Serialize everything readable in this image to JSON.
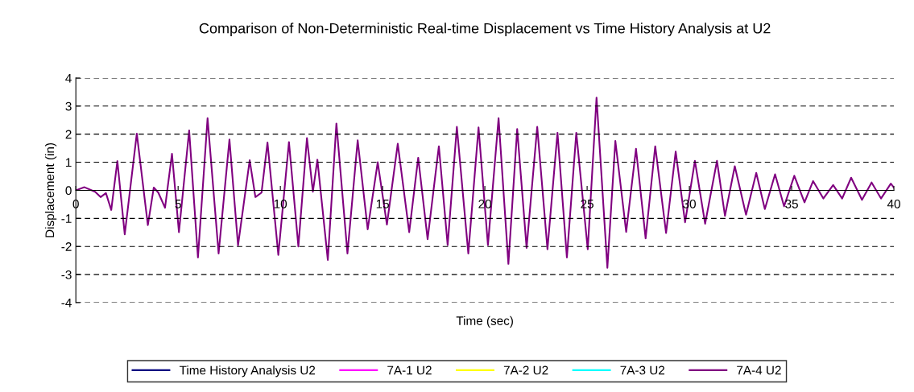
{
  "chart_data": {
    "type": "line",
    "title": "Comparison of Non-Deterministic Real-time Displacement vs Time History Analysis at U2",
    "xlabel": "Time (sec)",
    "ylabel": "Displacement (in)",
    "x": [
      0,
      0.42,
      0.94,
      1.21,
      1.47,
      1.73,
      2.03,
      2.39,
      2.98,
      3.52,
      3.81,
      4.03,
      4.36,
      4.7,
      5.04,
      5.54,
      5.97,
      6.44,
      6.98,
      7.51,
      7.93,
      8.5,
      8.78,
      9.08,
      9.37,
      9.9,
      10.42,
      10.88,
      11.3,
      11.59,
      11.81,
      12.32,
      12.74,
      13.28,
      13.78,
      14.27,
      14.76,
      15.21,
      15.74,
      16.3,
      16.74,
      17.2,
      17.75,
      18.18,
      18.63,
      19.19,
      19.69,
      20.15,
      20.67,
      21.15,
      21.58,
      22.04,
      22.56,
      23.06,
      23.55,
      24.01,
      24.47,
      25.03,
      25.46,
      25.99,
      26.38,
      26.91,
      27.39,
      27.86,
      28.33,
      28.86,
      29.33,
      29.79,
      30.27,
      30.77,
      31.35,
      31.74,
      32.22,
      32.77,
      33.27,
      33.69,
      34.19,
      34.63,
      35.13,
      35.63,
      36.05,
      36.55,
      37.03,
      37.47,
      37.91,
      38.44,
      38.91,
      39.37,
      39.85,
      40
    ],
    "series": [
      {
        "name": "Time History Analysis U2",
        "color": "#000080",
        "values": [
          null,
          null,
          null,
          null,
          null,
          null,
          null,
          null,
          null,
          null,
          null,
          null,
          null,
          null,
          null,
          null,
          null,
          null,
          null,
          null,
          null,
          null,
          null,
          null,
          null,
          null,
          null,
          null,
          null,
          null,
          null,
          null,
          null,
          null,
          null,
          null,
          null,
          null,
          null,
          null,
          null,
          null,
          null,
          null,
          null,
          null,
          null,
          null,
          null,
          null,
          null,
          null,
          null,
          null,
          null,
          null,
          null,
          null,
          null,
          null,
          null,
          null,
          null,
          null,
          null,
          null,
          null,
          null,
          null,
          null,
          null,
          null,
          null,
          null,
          null,
          null,
          null,
          null,
          null,
          null,
          null,
          null,
          null,
          null,
          null,
          null,
          null,
          null,
          null,
          null
        ]
      },
      {
        "name": "7A-1 U2",
        "color": "#ff00ff",
        "values": [
          null,
          null,
          null,
          null,
          null,
          null,
          null,
          null,
          null,
          null,
          null,
          null,
          null,
          null,
          null,
          null,
          null,
          null,
          null,
          null,
          null,
          null,
          null,
          null,
          null,
          null,
          null,
          null,
          null,
          null,
          null,
          null,
          null,
          null,
          null,
          null,
          null,
          null,
          null,
          null,
          null,
          null,
          null,
          null,
          null,
          null,
          null,
          null,
          null,
          null,
          null,
          null,
          null,
          null,
          null,
          null,
          null,
          null,
          null,
          null,
          null,
          null,
          null,
          null,
          null,
          null,
          null,
          null,
          null,
          null,
          null,
          null,
          null,
          null,
          null,
          null,
          null,
          null,
          null,
          null,
          null,
          null,
          null,
          null,
          null,
          null,
          null,
          null,
          null,
          null
        ]
      },
      {
        "name": "7A-2 U2",
        "color": "#ffff00",
        "values": [
          null,
          null,
          null,
          null,
          null,
          null,
          null,
          null,
          null,
          null,
          null,
          null,
          null,
          null,
          null,
          null,
          null,
          null,
          null,
          null,
          null,
          null,
          null,
          null,
          null,
          null,
          null,
          null,
          null,
          null,
          null,
          null,
          null,
          null,
          null,
          null,
          null,
          null,
          null,
          null,
          null,
          null,
          null,
          null,
          null,
          null,
          null,
          null,
          null,
          null,
          null,
          null,
          null,
          null,
          null,
          null,
          null,
          null,
          null,
          null,
          null,
          null,
          null,
          null,
          null,
          null,
          null,
          null,
          null,
          null,
          null,
          null,
          null,
          null,
          null,
          null,
          null,
          null,
          null,
          null,
          null,
          null,
          null,
          null,
          null,
          null,
          null,
          null,
          null,
          null
        ]
      },
      {
        "name": "7A-3 U2",
        "color": "#00ffff",
        "values": [
          null,
          null,
          null,
          null,
          null,
          null,
          null,
          null,
          null,
          null,
          null,
          null,
          null,
          null,
          null,
          null,
          null,
          null,
          null,
          null,
          null,
          null,
          null,
          null,
          null,
          null,
          null,
          null,
          null,
          null,
          null,
          null,
          null,
          null,
          null,
          null,
          null,
          null,
          null,
          null,
          null,
          null,
          null,
          null,
          null,
          null,
          null,
          null,
          null,
          null,
          null,
          null,
          null,
          null,
          null,
          null,
          null,
          null,
          null,
          null,
          null,
          null,
          null,
          null,
          null,
          null,
          null,
          null,
          null,
          null,
          null,
          null,
          null,
          null,
          null,
          null,
          null,
          null,
          null,
          null,
          null,
          null,
          null,
          null,
          null,
          null,
          null,
          null,
          null,
          null
        ]
      },
      {
        "name": "7A-4 U2",
        "color": "#800080",
        "values": [
          0,
          0.11,
          -0.05,
          -0.24,
          -0.1,
          -0.7,
          1.04,
          -1.57,
          2.02,
          -1.24,
          0.1,
          -0.08,
          -0.62,
          1.3,
          -1.49,
          2.13,
          -2.39,
          2.57,
          -2.25,
          1.81,
          -1.96,
          1.07,
          -0.24,
          -0.08,
          1.7,
          -2.3,
          1.72,
          -2.0,
          1.86,
          -0.05,
          1.09,
          -2.48,
          2.38,
          -2.25,
          1.78,
          -1.39,
          1.0,
          -1.22,
          1.66,
          -1.49,
          1.16,
          -1.74,
          1.57,
          -1.95,
          2.26,
          -2.25,
          2.24,
          -1.95,
          2.57,
          -2.62,
          2.18,
          -2.05,
          2.26,
          -2.1,
          2.05,
          -2.39,
          2.05,
          -2.1,
          3.3,
          -2.76,
          1.76,
          -1.48,
          1.48,
          -1.71,
          1.57,
          -1.52,
          1.38,
          -1.14,
          1.05,
          -1.19,
          1.05,
          -0.91,
          0.86,
          -0.87,
          0.62,
          -0.67,
          0.57,
          -0.57,
          0.52,
          -0.43,
          0.33,
          -0.29,
          0.19,
          -0.29,
          0.45,
          -0.34,
          0.28,
          -0.29,
          0.24,
          0.1
        ]
      }
    ],
    "xlim": [
      0,
      40
    ],
    "xticks": [
      0,
      5,
      10,
      15,
      20,
      25,
      30,
      35,
      40
    ],
    "ylim": [
      -4,
      4
    ],
    "yticks": [
      -4,
      -3,
      -2,
      -1,
      0,
      1,
      2,
      3,
      4
    ],
    "grid": "y",
    "legend": "bottom",
    "line_style": "solid",
    "marker": "none"
  }
}
